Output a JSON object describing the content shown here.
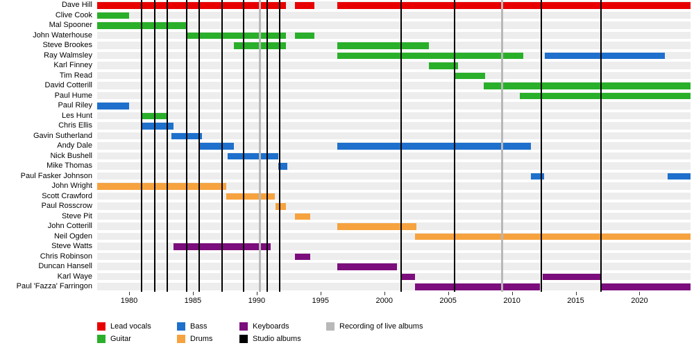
{
  "chart_data": {
    "type": "timeline",
    "description": "Band members timeline (Gantt-style) showing each member's tenure colored by instrument, with vertical lines marking studio albums and live-album recordings.",
    "x_axis": {
      "min": 1977.5,
      "max": 2024,
      "ticks": [
        1980,
        1985,
        1990,
        1995,
        2000,
        2005,
        2010,
        2015,
        2020
      ]
    },
    "roles": {
      "lead_vocals": {
        "label": "Lead vocals",
        "color": "#e80000"
      },
      "guitar": {
        "label": "Guitar",
        "color": "#2aaf2a"
      },
      "bass": {
        "label": "Bass",
        "color": "#1e70cc"
      },
      "drums": {
        "label": "Drums",
        "color": "#f6a33f"
      },
      "keyboards": {
        "label": "Keyboards",
        "color": "#7c0d7c"
      }
    },
    "events": {
      "studio_albums": {
        "label": "Studio albums",
        "color": "#000000",
        "years": [
          1981,
          1982,
          1983,
          1984.5,
          1985.5,
          1987.3,
          1989,
          1990.8,
          1991.8,
          2001.3,
          2005.5,
          2012.3,
          2017
        ]
      },
      "live_recordings": {
        "label": "Recording of live albums",
        "color": "#b8b8b8",
        "years": [
          1990.2,
          2009.2
        ]
      }
    },
    "members": [
      {
        "name": "Dave Hill",
        "segments": [
          {
            "role": "lead_vocals",
            "start": 1977.5,
            "end": 1992.3
          },
          {
            "role": "lead_vocals",
            "start": 1993,
            "end": 1994.5
          },
          {
            "role": "lead_vocals",
            "start": 1996.3,
            "end": 2024
          }
        ]
      },
      {
        "name": "Clive Cook",
        "segments": [
          {
            "role": "guitar",
            "start": 1977.5,
            "end": 1980
          }
        ]
      },
      {
        "name": "Mal Spooner",
        "segments": [
          {
            "role": "guitar",
            "start": 1977.5,
            "end": 1984.5
          }
        ]
      },
      {
        "name": "John Waterhouse",
        "segments": [
          {
            "role": "guitar",
            "start": 1984.5,
            "end": 1992.3
          },
          {
            "role": "guitar",
            "start": 1993,
            "end": 1994.5
          }
        ]
      },
      {
        "name": "Steve Brookes",
        "segments": [
          {
            "role": "guitar",
            "start": 1988.2,
            "end": 1992.3
          },
          {
            "role": "guitar",
            "start": 1996.3,
            "end": 2003.5
          }
        ]
      },
      {
        "name": "Ray Walmsley",
        "segments": [
          {
            "role": "guitar",
            "start": 1996.3,
            "end": 2010.9
          },
          {
            "role": "bass",
            "start": 2012.6,
            "end": 2022
          }
        ]
      },
      {
        "name": "Karl Finney",
        "segments": [
          {
            "role": "guitar",
            "start": 2003.5,
            "end": 2005.8
          }
        ]
      },
      {
        "name": "Tim Read",
        "segments": [
          {
            "role": "guitar",
            "start": 2005.5,
            "end": 2007.9
          }
        ]
      },
      {
        "name": "David Cotterill",
        "segments": [
          {
            "role": "guitar",
            "start": 2007.8,
            "end": 2024
          }
        ]
      },
      {
        "name": "Paul Hume",
        "segments": [
          {
            "role": "guitar",
            "start": 2010.6,
            "end": 2024
          }
        ]
      },
      {
        "name": "Paul Riley",
        "segments": [
          {
            "role": "bass",
            "start": 1977.5,
            "end": 1980
          }
        ]
      },
      {
        "name": "Les Hunt",
        "segments": [
          {
            "role": "guitar",
            "start": 1980.9,
            "end": 1983
          }
        ]
      },
      {
        "name": "Chris Ellis",
        "segments": [
          {
            "role": "bass",
            "start": 1980.9,
            "end": 1983.5
          }
        ]
      },
      {
        "name": "Gavin Sutherland",
        "segments": [
          {
            "role": "bass",
            "start": 1983.3,
            "end": 1985.7
          }
        ]
      },
      {
        "name": "Andy Dale",
        "segments": [
          {
            "role": "bass",
            "start": 1985.5,
            "end": 1988.2
          },
          {
            "role": "bass",
            "start": 1996.3,
            "end": 2011.5
          }
        ]
      },
      {
        "name": "Nick Bushell",
        "segments": [
          {
            "role": "bass",
            "start": 1987.7,
            "end": 1991.7
          }
        ]
      },
      {
        "name": "Mike Thomas",
        "segments": [
          {
            "role": "bass",
            "start": 1991.7,
            "end": 1992.4
          }
        ]
      },
      {
        "name": "Paul Fasker Johnson",
        "segments": [
          {
            "role": "bass",
            "start": 2011.5,
            "end": 2012.5
          },
          {
            "role": "bass",
            "start": 2022.2,
            "end": 2024
          }
        ]
      },
      {
        "name": "John Wright",
        "segments": [
          {
            "role": "drums",
            "start": 1977.5,
            "end": 1987.6
          }
        ]
      },
      {
        "name": "Scott Crawford",
        "segments": [
          {
            "role": "drums",
            "start": 1987.6,
            "end": 1991.4
          }
        ]
      },
      {
        "name": "Paul Rosscrow",
        "segments": [
          {
            "role": "drums",
            "start": 1991.5,
            "end": 1992.3
          }
        ]
      },
      {
        "name": "Steve Pit",
        "segments": [
          {
            "role": "drums",
            "start": 1993,
            "end": 1994.2
          }
        ]
      },
      {
        "name": "John Cotterill",
        "segments": [
          {
            "role": "drums",
            "start": 1996.3,
            "end": 2002.5
          }
        ]
      },
      {
        "name": "Neil Ogden",
        "segments": [
          {
            "role": "drums",
            "start": 2002.4,
            "end": 2024
          }
        ]
      },
      {
        "name": "Steve Watts",
        "segments": [
          {
            "role": "keyboards",
            "start": 1983.5,
            "end": 1991.1
          }
        ]
      },
      {
        "name": "Chris Robinson",
        "segments": [
          {
            "role": "keyboards",
            "start": 1993,
            "end": 1994.2
          }
        ]
      },
      {
        "name": "Duncan Hansell",
        "segments": [
          {
            "role": "keyboards",
            "start": 1996.3,
            "end": 2001
          }
        ]
      },
      {
        "name": "Karl Waye",
        "segments": [
          {
            "role": "keyboards",
            "start": 2001.3,
            "end": 2002.4
          },
          {
            "role": "keyboards",
            "start": 2012.4,
            "end": 2017
          }
        ]
      },
      {
        "name": "Paul 'Fazza' Farringon",
        "segments": [
          {
            "role": "keyboards",
            "start": 2002.4,
            "end": 2012.2
          },
          {
            "role": "keyboards",
            "start": 2017,
            "end": 2024
          }
        ]
      }
    ],
    "legend_columns": [
      {
        "items": [
          {
            "label": "Lead vocals",
            "color": "#e80000"
          },
          {
            "label": "Guitar",
            "color": "#2aaf2a"
          }
        ]
      },
      {
        "items": [
          {
            "label": "Bass",
            "color": "#1e70cc"
          },
          {
            "label": "Drums",
            "color": "#f6a33f"
          }
        ]
      },
      {
        "items": [
          {
            "label": "Keyboards",
            "color": "#7c0d7c"
          },
          {
            "label": "Studio albums",
            "color": "#000000"
          }
        ]
      },
      {
        "items": [
          {
            "label": "Recording of live albums",
            "color": "#b8b8b8"
          }
        ]
      }
    ]
  }
}
